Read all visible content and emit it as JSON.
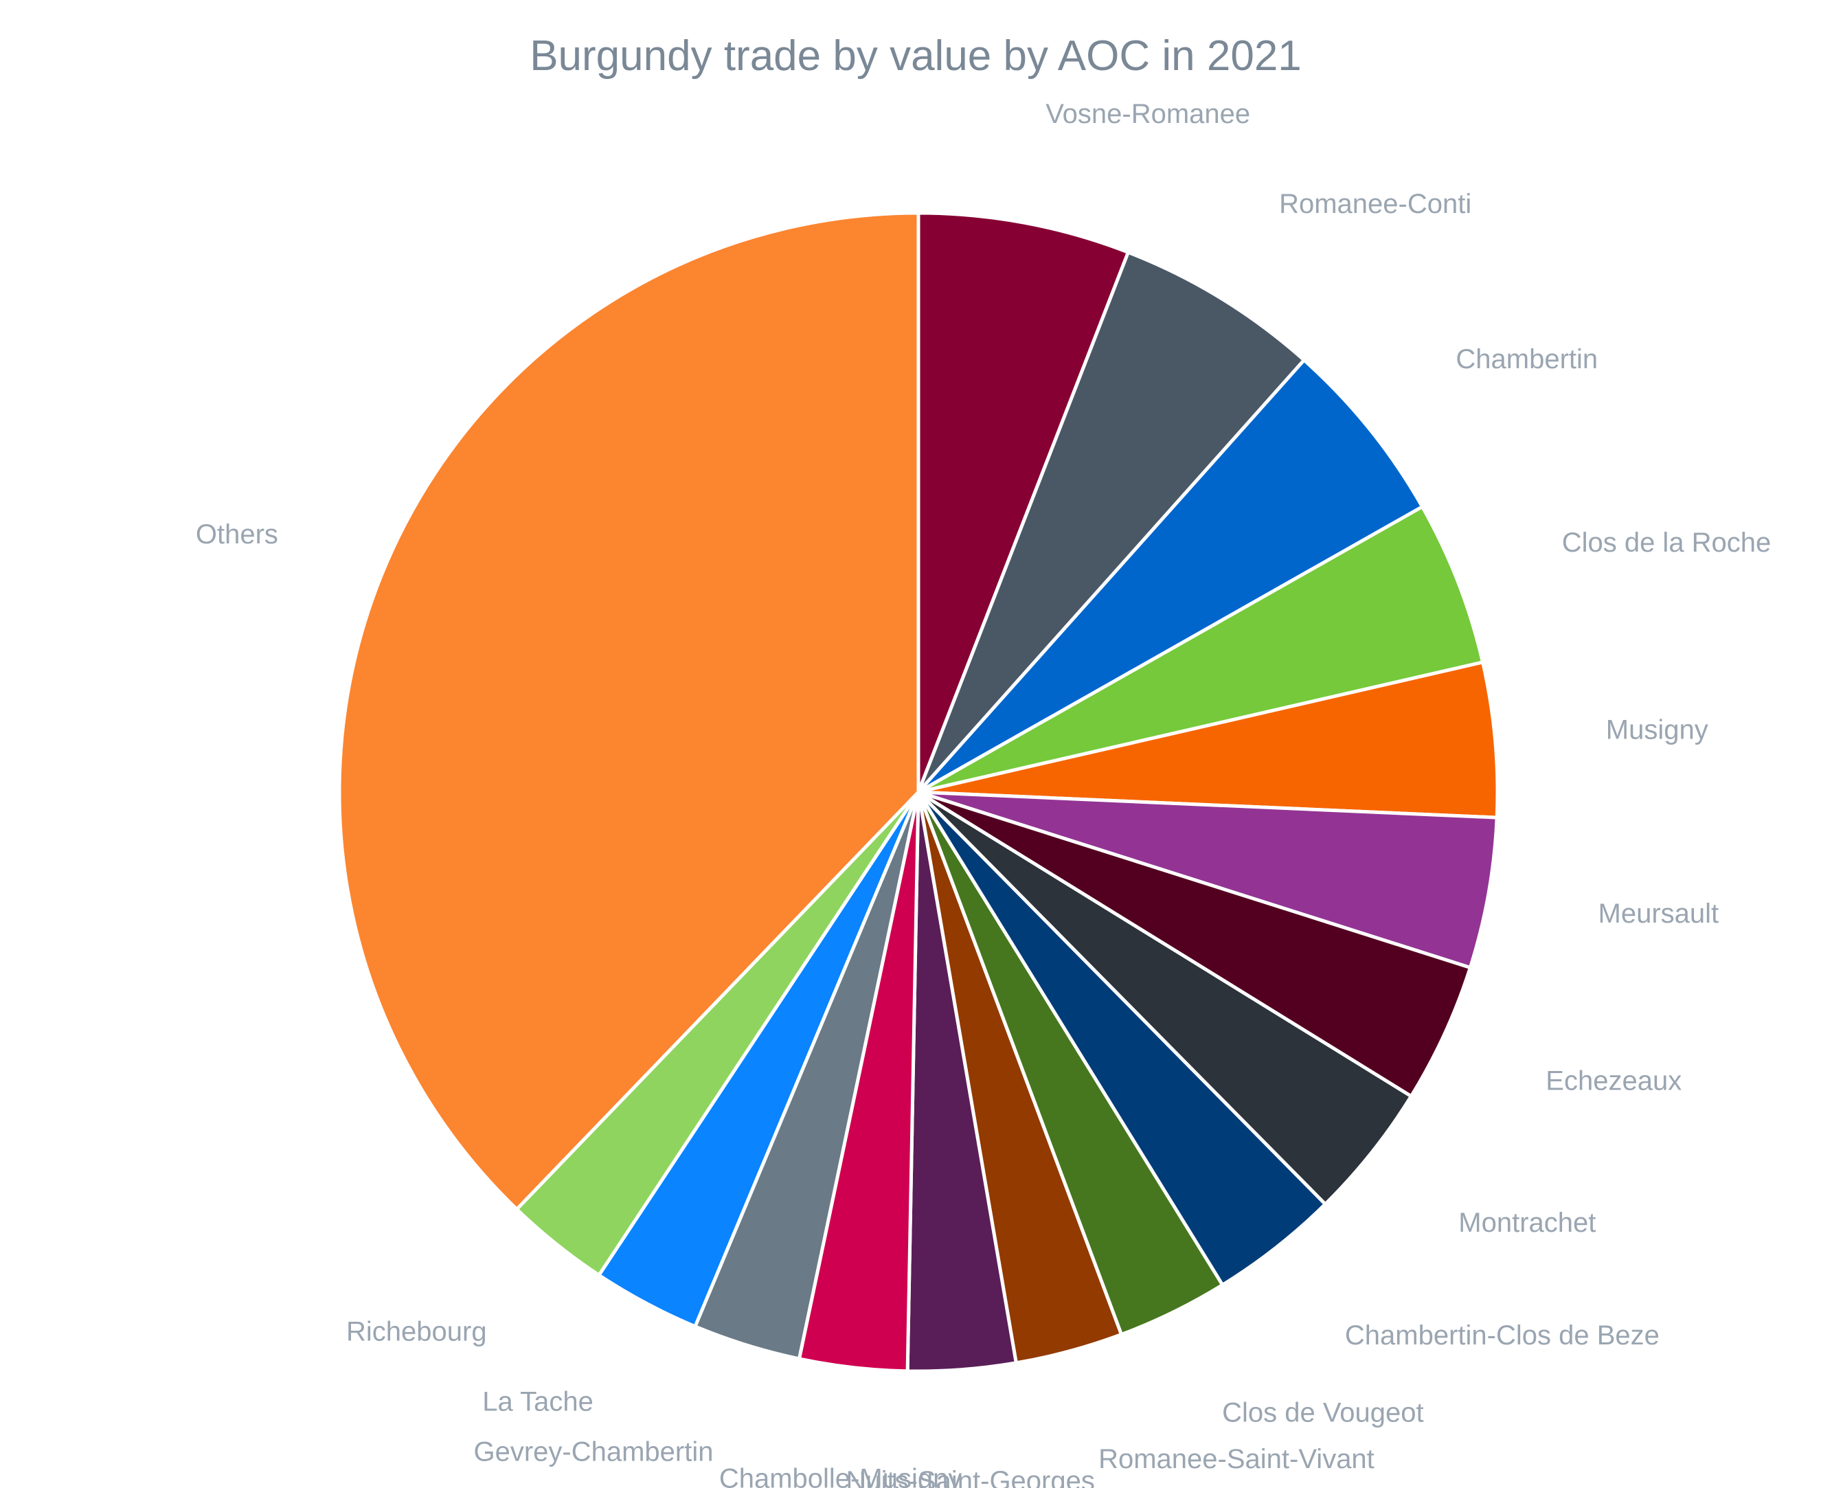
{
  "chart_data": {
    "type": "pie",
    "title": "Burgundy trade by value by AOC in 2021",
    "legend": "none",
    "start_angle_deg": 0,
    "direction": "clockwise",
    "slices": [
      {
        "label": "Vosne-Romanee",
        "value": 5.9,
        "color": "#870033"
      },
      {
        "label": "Romanee-Conti",
        "value": 5.7,
        "color": "#4a5866"
      },
      {
        "label": "Chambertin",
        "value": 5.2,
        "color": "#0066cc"
      },
      {
        "label": "Clos de la Roche",
        "value": 4.6,
        "color": "#75c93a"
      },
      {
        "label": "Musigny",
        "value": 4.3,
        "color": "#f76500"
      },
      {
        "label": "Meursault",
        "value": 4.2,
        "color": "#933494"
      },
      {
        "label": "Echezeaux",
        "value": 3.9,
        "color": "#530020"
      },
      {
        "label": "Montrachet",
        "value": 3.8,
        "color": "#2c333a"
      },
      {
        "label": "Chambertin-Clos de Beze",
        "value": 3.6,
        "color": "#003c78"
      },
      {
        "label": "Clos de Vougeot",
        "value": 3.1,
        "color": "#46771f"
      },
      {
        "label": "Romanee-Saint-Vivant",
        "value": 3.0,
        "color": "#923a00"
      },
      {
        "label": "Nuits-Saint-Georges",
        "value": 3.0,
        "color": "#591e57"
      },
      {
        "label": "Chambolle-Musigny",
        "value": 3.0,
        "color": "#d00050"
      },
      {
        "label": "Gevrey-Chambertin",
        "value": 3.0,
        "color": "#6a7a87"
      },
      {
        "label": "La Tache",
        "value": 3.0,
        "color": "#0a84ff"
      },
      {
        "label": "Richebourg",
        "value": 2.9,
        "color": "#8fd45f"
      },
      {
        "label": "Others",
        "value": 37.8,
        "color": "#fc8530"
      }
    ]
  }
}
